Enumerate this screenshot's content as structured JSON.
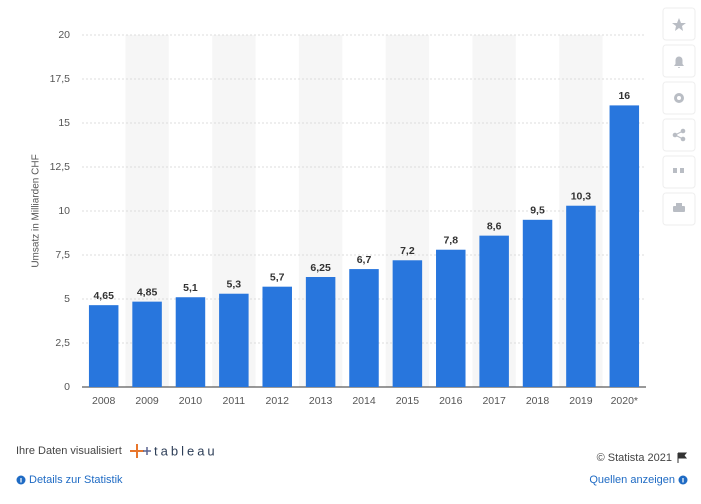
{
  "chart_data": {
    "type": "bar",
    "y_label": "Umsatz in Milliarden CHF",
    "categories": [
      "2008",
      "2009",
      "2010",
      "2011",
      "2012",
      "2013",
      "2014",
      "2015",
      "2016",
      "2017",
      "2018",
      "2019",
      "2020*"
    ],
    "values": [
      4.65,
      4.85,
      5.1,
      5.3,
      5.7,
      6.25,
      6.7,
      7.2,
      7.8,
      8.6,
      9.5,
      10.3,
      16
    ],
    "value_labels": [
      "4,65",
      "4,85",
      "5,1",
      "5,3",
      "5,7",
      "6,25",
      "6,7",
      "7,2",
      "7,8",
      "8,6",
      "9,5",
      "10,3",
      "16"
    ],
    "color": "#2876dd",
    "ylim": [
      0,
      20
    ],
    "yticks": [
      0,
      {
        "value": 2.5,
        "label": "2,5"
      },
      5,
      {
        "value": 7.5,
        "label": "7,5"
      },
      10,
      {
        "value": 12.5,
        "label": "12,5"
      },
      15,
      {
        "value": 17.5,
        "label": "17,5"
      },
      20
    ],
    "grid": true
  },
  "footer": {
    "visualized": "Ihre Daten visualisiert",
    "brand": "tableau",
    "copyright": "© Statista 2021",
    "details": "Details zur Statistik",
    "sources": "Quellen anzeigen"
  }
}
